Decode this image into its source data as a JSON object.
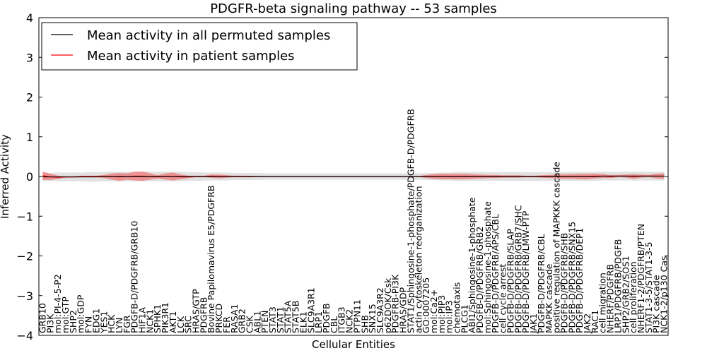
{
  "chart_data": {
    "type": "line",
    "title": "PDGFR-beta signaling pathway -- 53 samples",
    "xlabel": "Cellular Entities",
    "ylabel": "Inferred Activity",
    "ylim": [
      -4,
      4
    ],
    "yticks": [
      -4,
      -3,
      -2,
      -1,
      0,
      1,
      2,
      3,
      4
    ],
    "legend_position": "top-left",
    "categories": [
      "GRB10",
      "PI3K",
      "mol:PI-4-5-P2",
      "mol:GTP",
      "SHP2",
      "mol:GDP",
      "FYN",
      "EDG1",
      "YES1",
      "HCK",
      "LYN",
      "FGR",
      "PDGFB-D/PDGFRB/GRB10",
      "HIF1A",
      "NCK1",
      "SPHK1",
      "PIK3R1",
      "AKT1",
      "LCK",
      "SRC",
      "HRAS/GTP",
      "PDGFRB",
      "Bovine Papilomavirus E5/PDGFRB",
      "PRKCD",
      "FER",
      "RASA1",
      "GRB2",
      "CSK",
      "ABL1",
      "PTEN",
      "STAT3",
      "STAT1",
      "STAT5A",
      "STAT5B",
      "ELK1",
      "SLC9A3R1",
      "LRP1",
      "PDGFB",
      "CBL",
      "ITGB3",
      "NCK2",
      "PTPN11",
      "SHB",
      "SNX15",
      "SLC9A3R2",
      "p62DOK/Csk",
      "PDGFRB-PI3K",
      "HRAS/GDP",
      "STAT1/Sphingosine-1-phosphate/PDGFB-D/PDGFRB",
      "actin cytoskeleton reorganization",
      "GO:0007205",
      "mol:Ca2+",
      "mol:PIP3",
      "mol:IP3",
      "chemotaxis",
      "PLCG1",
      "ABI1/Sphingosine-1-phosphate",
      "PDGFB-D/PDGFRB/GRB2",
      "mol:Sphingosine-1-phosphate",
      "PDGFB-D/PDGFRB/APS/CBL",
      "cell cycle arrest",
      "PDGFB-D/PDGFRB/SLAP",
      "PDGFB-D/PDGFRB/GRB7/SHC",
      "PDGFB-D/PDGFRB/LMW-PTP",
      "JAK1",
      "PDGFB-D/PDGFRB/CBL",
      "MAPKK cascade",
      "positive regulation of MAPKKK cascade",
      "PDGFB-D/PDGFRB/SHB",
      "PDGFB-D/PDGFRB/SNX15",
      "PDGFB-D/PDGFRB/DEP1",
      "JAK2",
      "RAC1",
      "cell migration",
      "NHERF/PDGFRB",
      "LRP1/PDGFRB/PDGFB",
      "SHP2/GRB2/SOS1",
      "cell proliferation",
      "NHERF1-2/PDGFRB/PTEN",
      "STAT1-3-5/STAT1-3-5",
      "PI3K cascade",
      "NCK1-2/p130 Cas"
    ],
    "series": [
      {
        "name": "Mean activity in all permuted samples",
        "color": "#000000",
        "values": [
          -0.01,
          -0.01,
          -0.01,
          -0.01,
          -0.01,
          -0.01,
          -0.01,
          -0.01,
          0.0,
          0.0,
          0.0,
          0.0,
          0.0,
          0.0,
          0.0,
          0.0,
          0.0,
          0.0,
          0.0,
          0.0,
          0.0,
          0.0,
          0.0,
          0.0,
          0.0,
          0.0,
          0.0,
          0.0,
          0.0,
          0.0,
          0.0,
          0.0,
          0.0,
          0.0,
          0.0,
          0.0,
          0.0,
          0.0,
          0.0,
          0.0,
          0.0,
          0.0,
          0.0,
          0.0,
          0.0,
          0.0,
          0.0,
          0.0,
          0.0,
          0.0,
          0.0,
          0.0,
          0.0,
          0.0,
          0.0,
          0.0,
          0.0,
          0.0,
          0.0,
          0.0,
          0.0,
          0.0,
          0.0,
          0.0,
          0.0,
          0.0,
          0.0,
          0.0,
          0.0,
          0.0,
          0.0,
          0.0,
          0.0,
          0.01,
          0.01,
          0.01,
          0.01,
          0.01,
          0.01,
          0.01,
          0.01,
          0.01
        ],
        "band_halfwidth": [
          0.1,
          0.1,
          0.11,
          0.11,
          0.11,
          0.11,
          0.12,
          0.12,
          0.12,
          0.12,
          0.12,
          0.12,
          0.12,
          0.12,
          0.12,
          0.12,
          0.12,
          0.12,
          0.12,
          0.11,
          0.11,
          0.1,
          0.1,
          0.1,
          0.1,
          0.09,
          0.09,
          0.09,
          0.09,
          0.08,
          0.08,
          0.08,
          0.08,
          0.08,
          0.08,
          0.08,
          0.08,
          0.08,
          0.08,
          0.08,
          0.08,
          0.08,
          0.08,
          0.08,
          0.08,
          0.08,
          0.08,
          0.08,
          0.08,
          0.08,
          0.09,
          0.09,
          0.1,
          0.1,
          0.11,
          0.11,
          0.11,
          0.11,
          0.11,
          0.11,
          0.11,
          0.11,
          0.11,
          0.11,
          0.11,
          0.11,
          0.11,
          0.11,
          0.11,
          0.11,
          0.11,
          0.11,
          0.11,
          0.11,
          0.11,
          0.11,
          0.11,
          0.11,
          0.11,
          0.11,
          0.11,
          0.11
        ]
      },
      {
        "name": "Mean activity in patient samples",
        "color": "#ff0000",
        "values": [
          0.02,
          -0.01,
          -0.02,
          -0.01,
          -0.01,
          0.0,
          0.0,
          0.0,
          0.0,
          0.0,
          -0.01,
          0.0,
          0.01,
          0.01,
          0.0,
          -0.01,
          0.0,
          0.0,
          -0.01,
          -0.01,
          0.0,
          0.0,
          0.01,
          0.0,
          0.0,
          0.0,
          0.0,
          0.0,
          0.0,
          0.0,
          0.0,
          0.0,
          0.0,
          0.0,
          0.0,
          0.0,
          0.0,
          0.0,
          0.0,
          0.0,
          0.0,
          0.0,
          0.0,
          0.0,
          0.0,
          0.0,
          0.0,
          0.0,
          0.0,
          0.0,
          0.0,
          0.0,
          0.0,
          0.0,
          0.0,
          0.0,
          0.0,
          0.0,
          0.0,
          0.0,
          0.0,
          0.0,
          0.0,
          0.0,
          0.0,
          0.0,
          0.0,
          0.0,
          0.0,
          0.0,
          0.0,
          0.0,
          0.01,
          0.01,
          0.0,
          0.01,
          0.01,
          0.0,
          0.01,
          0.01,
          0.01,
          0.01
        ],
        "band_halfwidth": [
          0.11,
          0.08,
          0.04,
          0.02,
          0.02,
          0.02,
          0.02,
          0.02,
          0.04,
          0.08,
          0.1,
          0.08,
          0.11,
          0.12,
          0.08,
          0.04,
          0.08,
          0.1,
          0.06,
          0.03,
          0.02,
          0.02,
          0.04,
          0.05,
          0.03,
          0.02,
          0.02,
          0.02,
          0.01,
          0.01,
          0.01,
          0.01,
          0.01,
          0.01,
          0.01,
          0.01,
          0.01,
          0.01,
          0.01,
          0.01,
          0.01,
          0.01,
          0.01,
          0.01,
          0.01,
          0.01,
          0.01,
          0.01,
          0.01,
          0.01,
          0.04,
          0.06,
          0.07,
          0.07,
          0.07,
          0.07,
          0.06,
          0.05,
          0.04,
          0.04,
          0.03,
          0.03,
          0.03,
          0.02,
          0.02,
          0.03,
          0.04,
          0.05,
          0.06,
          0.06,
          0.07,
          0.07,
          0.06,
          0.05,
          0.04,
          0.03,
          0.04,
          0.06,
          0.04,
          0.03,
          0.06,
          0.07
        ]
      }
    ]
  }
}
